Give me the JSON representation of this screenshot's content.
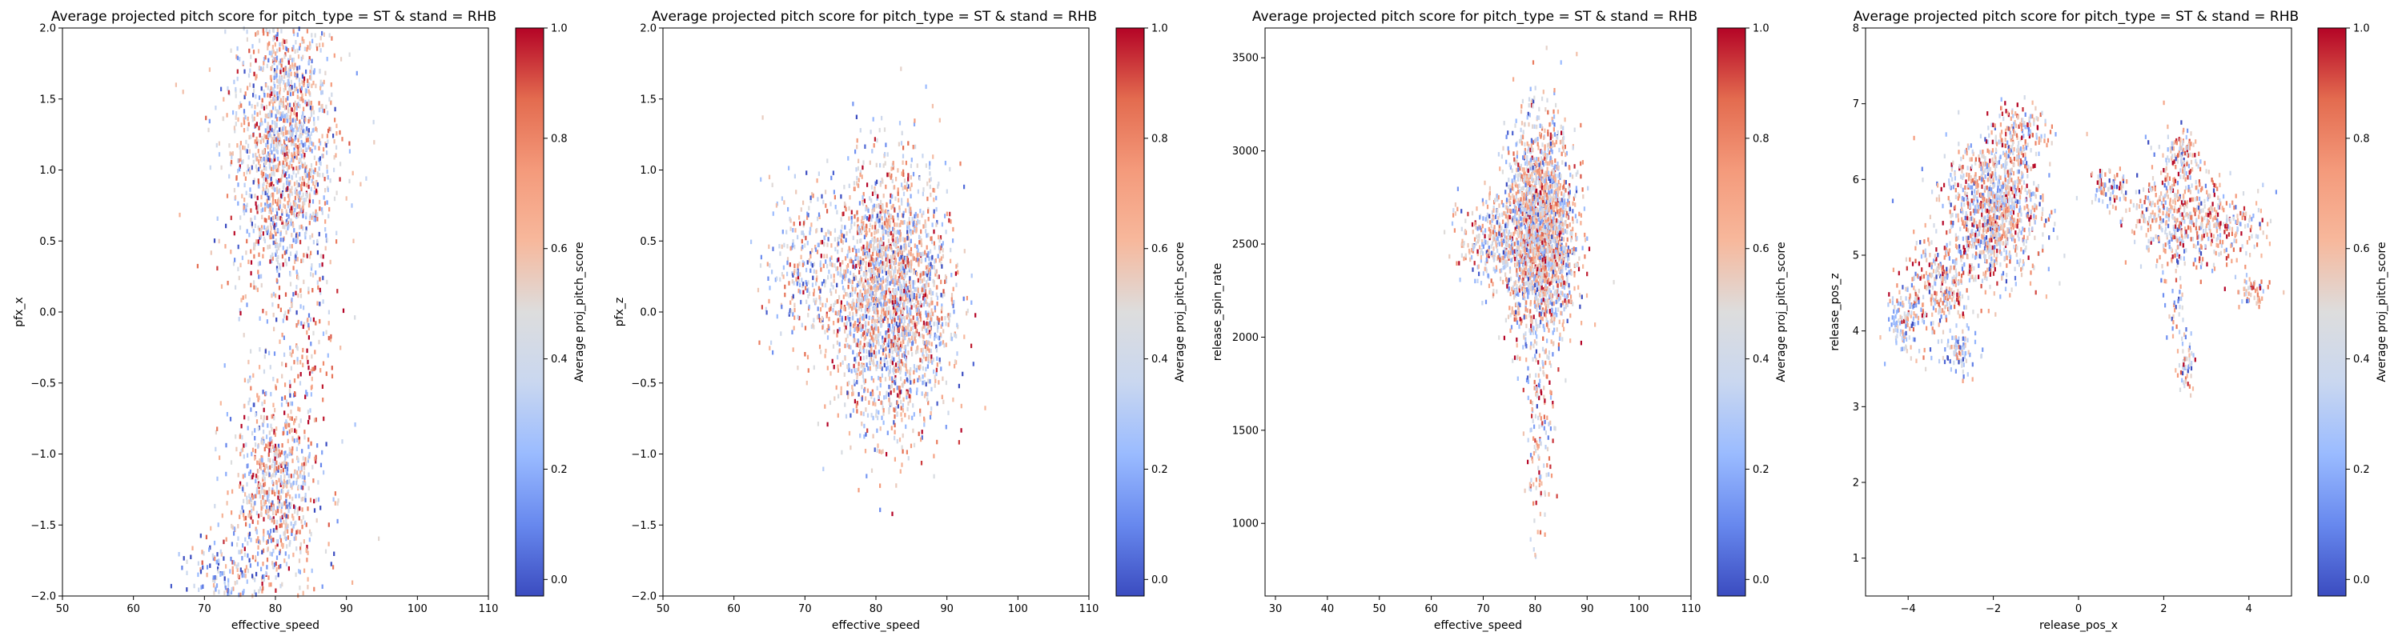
{
  "colors": {
    "cmap": [
      "#3b4cc0",
      "#6788ee",
      "#9abbff",
      "#c9d7f0",
      "#dddddd",
      "#f7b89c",
      "#f49a7b",
      "#e36b4f",
      "#b40426"
    ],
    "axes": "#000000"
  },
  "chart_data": [
    {
      "type": "heatmap",
      "title": "Average projected pitch score for pitch_type = ST & stand = RHB",
      "xlabel": "effective_speed",
      "ylabel": "pfx_x",
      "xlim": [
        50,
        110
      ],
      "ylim": [
        -2,
        2
      ],
      "xticks": [
        50,
        60,
        70,
        80,
        90,
        100,
        110
      ],
      "yticks": [
        -2.0,
        -1.5,
        -1.0,
        -0.5,
        0.0,
        0.5,
        1.0,
        1.5,
        2.0
      ],
      "colorbar": {
        "label": "Average proj_pitch_score",
        "range": [
          -0.03,
          1.0
        ],
        "ticks": [
          0.0,
          0.2,
          0.4,
          0.6,
          0.8,
          1.0
        ]
      },
      "clusters": [
        {
          "cx": 81,
          "cy": 1.15,
          "sx": 3.6,
          "sy": 0.55,
          "w": 0.62,
          "mean": 0.48
        },
        {
          "cx": 80,
          "cy": -1.25,
          "sx": 3.4,
          "sy": 0.38,
          "w": 0.3,
          "mean": 0.52
        },
        {
          "cx": 73,
          "cy": -1.85,
          "sx": 3.0,
          "sy": 0.12,
          "w": 0.05,
          "mean": 0.3
        },
        {
          "cx": 85,
          "cy": -0.2,
          "sx": 1.5,
          "sy": 0.25,
          "w": 0.03,
          "mean": 0.7
        }
      ],
      "grid": false,
      "grid_outliers": {
        "x": [
          90,
          91,
          92,
          66,
          67
        ],
        "y": [
          0.8,
          0.5,
          0.9,
          1.6,
          1.55
        ]
      }
    },
    {
      "type": "heatmap",
      "title": "Average projected pitch score for pitch_type = ST & stand = RHB",
      "xlabel": "effective_speed",
      "ylabel": "pfx_z",
      "xlim": [
        50,
        110
      ],
      "ylim": [
        -2,
        2
      ],
      "xticks": [
        50,
        60,
        70,
        80,
        90,
        100,
        110
      ],
      "yticks": [
        -2.0,
        -1.5,
        -1.0,
        -0.5,
        0.0,
        0.5,
        1.0,
        1.5,
        2.0
      ],
      "colorbar": {
        "label": "Average proj_pitch_score",
        "range": [
          -0.03,
          1.0
        ],
        "ticks": [
          0.0,
          0.2,
          0.4,
          0.6,
          0.8,
          1.0
        ]
      },
      "clusters": [
        {
          "cx": 82,
          "cy": 0.1,
          "sx": 4.2,
          "sy": 0.45,
          "w": 0.9,
          "mean": 0.5
        },
        {
          "cx": 70,
          "cy": 0.3,
          "sx": 3.0,
          "sy": 0.3,
          "w": 0.1,
          "mean": 0.45
        }
      ],
      "grid": false,
      "grid_outliers": {
        "x": [
          65,
          66,
          88,
          89
        ],
        "y": [
          0.95,
          0.75,
          1.45,
          1.35
        ]
      }
    },
    {
      "type": "heatmap",
      "title": "Average projected pitch score for pitch_type = ST & stand = RHB",
      "xlabel": "effective_speed",
      "ylabel": "release_spin_rate",
      "xlim": [
        28,
        110
      ],
      "ylim": [
        610,
        3660
      ],
      "xticks": [
        30,
        40,
        50,
        60,
        70,
        80,
        90,
        100,
        110
      ],
      "yticks": [
        1000,
        1500,
        2000,
        2500,
        3000,
        3500
      ],
      "colorbar": {
        "label": "Average proj_pitch_score",
        "range": [
          -0.03,
          1.0
        ],
        "ticks": [
          0.0,
          0.2,
          0.4,
          0.6,
          0.8,
          1.0
        ]
      },
      "clusters": [
        {
          "cx": 81,
          "cy": 2550,
          "sx": 3.3,
          "sy": 280,
          "w": 0.85,
          "mean": 0.5
        },
        {
          "cx": 71,
          "cy": 2520,
          "sx": 2.8,
          "sy": 120,
          "w": 0.1,
          "mean": 0.45
        },
        {
          "cx": 81,
          "cy": 1500,
          "sx": 1.4,
          "sy": 250,
          "w": 0.05,
          "mean": 0.55
        }
      ],
      "grid": false,
      "grid_outliers": {
        "x": [
          88,
          80,
          81,
          79
        ],
        "y": [
          3520,
          830,
          1050,
          1210
        ]
      }
    },
    {
      "type": "heatmap",
      "title": "Average projected pitch score for pitch_type = ST & stand = RHB",
      "xlabel": "release_pos_x",
      "ylabel": "release_pos_z",
      "xlim": [
        -5,
        5
      ],
      "ylim": [
        0.5,
        8
      ],
      "xticks": [
        -4,
        -2,
        0,
        2,
        4
      ],
      "yticks": [
        1,
        2,
        3,
        4,
        5,
        6,
        7,
        8
      ],
      "colorbar": {
        "label": "Average proj_pitch_score",
        "range": [
          -0.03,
          1.0
        ],
        "ticks": [
          0.0,
          0.2,
          0.4,
          0.6,
          0.8,
          1.0
        ]
      },
      "clusters": [
        {
          "cx": -2.0,
          "cy": 5.6,
          "sx": 0.55,
          "sy": 0.45,
          "w": 0.4,
          "mean": 0.5
        },
        {
          "cx": -3.3,
          "cy": 4.6,
          "sx": 0.45,
          "sy": 0.35,
          "w": 0.12,
          "mean": 0.55
        },
        {
          "cx": -4.1,
          "cy": 4.1,
          "sx": 0.2,
          "sy": 0.2,
          "w": 0.04,
          "mean": 0.4
        },
        {
          "cx": -2.8,
          "cy": 3.7,
          "sx": 0.2,
          "sy": 0.15,
          "w": 0.03,
          "mean": 0.35
        },
        {
          "cx": -1.4,
          "cy": 6.6,
          "sx": 0.35,
          "sy": 0.2,
          "w": 0.06,
          "mean": 0.6
        },
        {
          "cx": 0.7,
          "cy": 5.9,
          "sx": 0.25,
          "sy": 0.12,
          "w": 0.03,
          "mean": 0.55
        },
        {
          "cx": 2.2,
          "cy": 5.5,
          "sx": 0.5,
          "sy": 0.35,
          "w": 0.15,
          "mean": 0.55
        },
        {
          "cx": 3.4,
          "cy": 5.4,
          "sx": 0.5,
          "sy": 0.25,
          "w": 0.08,
          "mean": 0.6
        },
        {
          "cx": 2.4,
          "cy": 6.3,
          "sx": 0.2,
          "sy": 0.2,
          "w": 0.04,
          "mean": 0.6
        },
        {
          "cx": 4.1,
          "cy": 4.5,
          "sx": 0.2,
          "sy": 0.1,
          "w": 0.02,
          "mean": 0.5
        },
        {
          "cx": 2.5,
          "cy": 3.6,
          "sx": 0.1,
          "sy": 0.25,
          "w": 0.02,
          "mean": 0.5
        },
        {
          "cx": 2.3,
          "cy": 4.4,
          "sx": 0.15,
          "sy": 0.25,
          "w": 0.01,
          "mean": 0.45
        }
      ],
      "grid": false,
      "grid_outliers": {
        "x": [
          0.2,
          1.2
        ],
        "y": [
          6.6,
          5.6
        ]
      }
    }
  ]
}
